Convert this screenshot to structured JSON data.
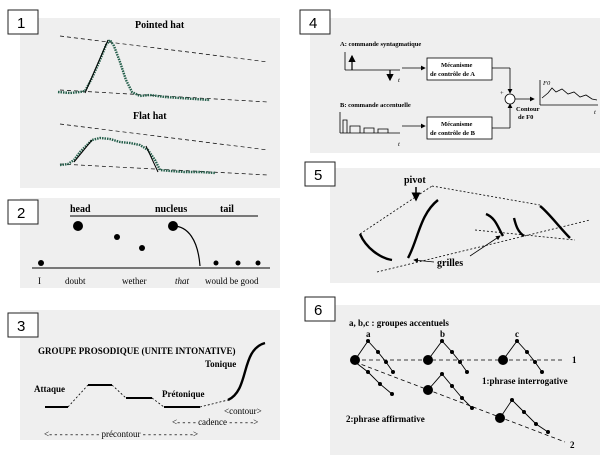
{
  "panels": {
    "p1": {
      "number": "1",
      "pointed_hat_label": "Pointed hat",
      "flat_hat_label": "Flat hat"
    },
    "p2": {
      "number": "2",
      "head_label": "head",
      "nucleus_label": "nucleus",
      "tail_label": "tail",
      "words": [
        "I",
        "doubt",
        "wether",
        "that",
        "would be good"
      ]
    },
    "p3": {
      "number": "3",
      "title": "GROUPE PROSODIQUE (UNITE INTONATIVE)",
      "attaque": "Attaque",
      "pretonique": "Prétonique",
      "tonique": "Tonique",
      "contour": "<contour>",
      "cadence": "<- - - - cadence  - - - - ->",
      "precontour": "<- - - - - - - - - - précontour - - - - - - - - - ->"
    },
    "p4": {
      "number": "4",
      "cmd_a": "A: commande syntagmatique",
      "cmd_b": "B: commande accentuelle",
      "box_a_line1": "Mécanisme",
      "box_a_line2": "de contrôle de A",
      "box_b_line1": "Mécanisme",
      "box_b_line2": "de contrôle de B",
      "contour_line1": "Contour",
      "contour_line2": "de F0",
      "t_label": "t",
      "f0_label": "F0",
      "plus": "+"
    },
    "p5": {
      "number": "5",
      "pivot": "pivot",
      "grilles": "grilles"
    },
    "p6": {
      "number": "6",
      "legend": "a, b,c : groupes accentuels",
      "a": "a",
      "b": "b",
      "c": "c",
      "line1": "1",
      "line2": "2",
      "interrogative": "1:phrase interrogative",
      "affirmative": "2:phrase affirmative"
    }
  }
}
